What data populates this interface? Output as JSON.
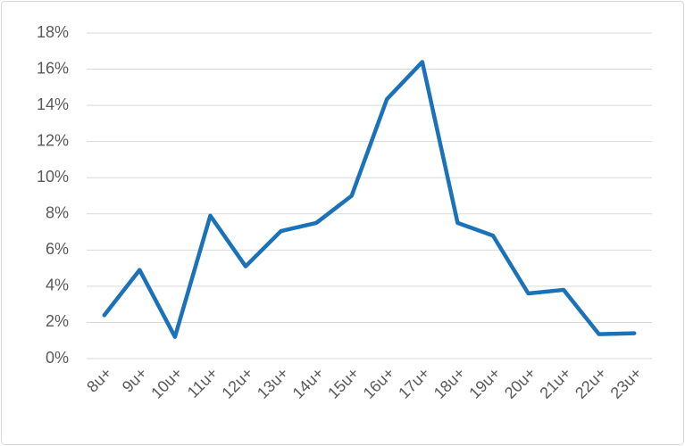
{
  "chart_data": {
    "type": "line",
    "categories": [
      "8u+",
      "9u+",
      "10u+",
      "11u+",
      "12u+",
      "13u+",
      "14u+",
      "15u+",
      "16u+",
      "17u+",
      "18u+",
      "19u+",
      "20u+",
      "21u+",
      "22u+",
      "23u+"
    ],
    "values": [
      2.4,
      4.9,
      1.2,
      7.9,
      5.1,
      7.05,
      7.5,
      9.0,
      14.35,
      16.4,
      7.5,
      6.8,
      3.6,
      3.8,
      1.35,
      1.4
    ],
    "color": "#1b72b8",
    "ylim": [
      0,
      18
    ],
    "yticks": [
      {
        "value": 0,
        "label": "0%"
      },
      {
        "value": 2,
        "label": "2%"
      },
      {
        "value": 4,
        "label": "4%"
      },
      {
        "value": 6,
        "label": "6%"
      },
      {
        "value": 8,
        "label": "8%"
      },
      {
        "value": 10,
        "label": "10%"
      },
      {
        "value": 12,
        "label": "12%"
      },
      {
        "value": 14,
        "label": "14%"
      },
      {
        "value": 16,
        "label": "16%"
      },
      {
        "value": 18,
        "label": "18%"
      }
    ],
    "grid": true
  }
}
